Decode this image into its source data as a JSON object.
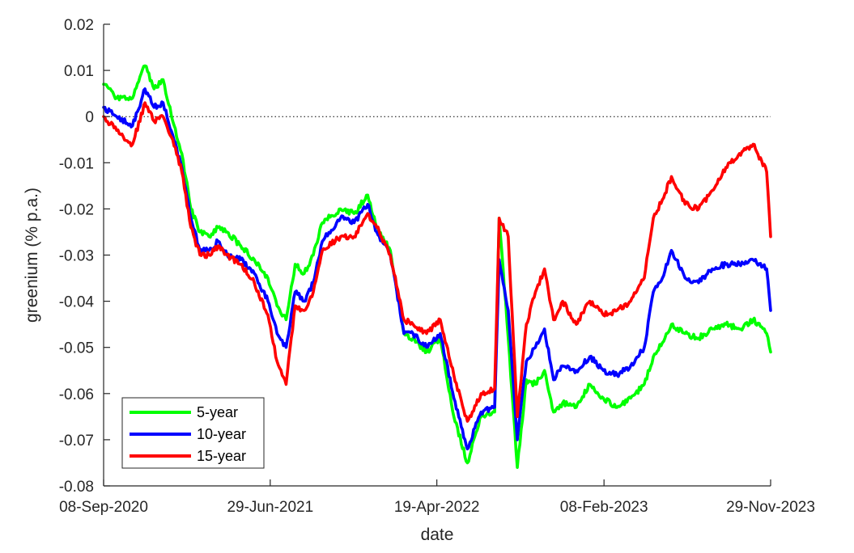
{
  "chart_data": {
    "type": "line",
    "xlabel": "date",
    "ylabel": "greenium (% p.a.)",
    "x_ticks": [
      "08-Sep-2020",
      "29-Jun-2021",
      "19-Apr-2022",
      "08-Feb-2023",
      "29-Nov-2023"
    ],
    "x_range": [
      "2020-09-08",
      "2023-11-29"
    ],
    "ylim": [
      -0.08,
      0.02
    ],
    "y_ticks": [
      0.02,
      0.01,
      0,
      -0.01,
      -0.02,
      -0.03,
      -0.04,
      -0.05,
      -0.06,
      -0.07,
      -0.08
    ],
    "y_tick_labels": [
      "0.02",
      "0.01",
      "0",
      "-0.01",
      "-0.02",
      "-0.03",
      "-0.04",
      "-0.05",
      "-0.06",
      "-0.07",
      "-0.08"
    ],
    "reference_line": {
      "y": 0,
      "style": "dotted"
    },
    "grid": false,
    "legend": {
      "position": "bottom-left"
    },
    "series": [
      {
        "name": "5-year",
        "color": "#00ff00",
        "points": [
          [
            "2020-09-08",
            0.007
          ],
          [
            "2020-10-01",
            0.004
          ],
          [
            "2020-10-29",
            0.004
          ],
          [
            "2020-11-20",
            0.011
          ],
          [
            "2020-12-06",
            0.006
          ],
          [
            "2020-12-22",
            0.008
          ],
          [
            "2021-01-08",
            -0.001
          ],
          [
            "2021-01-24",
            -0.008
          ],
          [
            "2021-02-09",
            -0.02
          ],
          [
            "2021-02-25",
            -0.025
          ],
          [
            "2021-03-13",
            -0.026
          ],
          [
            "2021-03-29",
            -0.024
          ],
          [
            "2021-04-14",
            -0.025
          ],
          [
            "2021-05-08",
            -0.028
          ],
          [
            "2021-06-01",
            -0.031
          ],
          [
            "2021-06-25",
            -0.035
          ],
          [
            "2021-07-11",
            -0.041
          ],
          [
            "2021-07-27",
            -0.044
          ],
          [
            "2021-08-12",
            -0.032
          ],
          [
            "2021-08-28",
            -0.034
          ],
          [
            "2021-09-13",
            -0.03
          ],
          [
            "2021-09-29",
            -0.023
          ],
          [
            "2021-10-31",
            -0.02
          ],
          [
            "2021-11-24",
            -0.021
          ],
          [
            "2021-12-18",
            -0.017
          ],
          [
            "2022-01-03",
            -0.024
          ],
          [
            "2022-01-27",
            -0.029
          ],
          [
            "2022-02-20",
            -0.047
          ],
          [
            "2022-03-08",
            -0.048
          ],
          [
            "2022-04-01",
            -0.051
          ],
          [
            "2022-04-25",
            -0.048
          ],
          [
            "2022-05-19",
            -0.065
          ],
          [
            "2022-06-12",
            -0.075
          ],
          [
            "2022-07-06",
            -0.065
          ],
          [
            "2022-07-30",
            -0.064
          ],
          [
            "2022-08-07",
            -0.022
          ],
          [
            "2022-08-23",
            -0.048
          ],
          [
            "2022-09-08",
            -0.076
          ],
          [
            "2022-09-24",
            -0.057
          ],
          [
            "2022-10-10",
            -0.058
          ],
          [
            "2022-10-26",
            -0.055
          ],
          [
            "2022-11-11",
            -0.064
          ],
          [
            "2022-11-27",
            -0.062
          ],
          [
            "2022-12-21",
            -0.063
          ],
          [
            "2023-01-14",
            -0.058
          ],
          [
            "2023-02-07",
            -0.061
          ],
          [
            "2023-03-03",
            -0.063
          ],
          [
            "2023-03-27",
            -0.061
          ],
          [
            "2023-04-20",
            -0.058
          ],
          [
            "2023-05-06",
            -0.052
          ],
          [
            "2023-05-22",
            -0.049
          ],
          [
            "2023-06-07",
            -0.045
          ],
          [
            "2023-07-01",
            -0.047
          ],
          [
            "2023-07-25",
            -0.048
          ],
          [
            "2023-08-18",
            -0.046
          ],
          [
            "2023-09-11",
            -0.045
          ],
          [
            "2023-10-05",
            -0.046
          ],
          [
            "2023-10-29",
            -0.044
          ],
          [
            "2023-11-22",
            -0.047
          ],
          [
            "2023-11-29",
            -0.051
          ]
        ]
      },
      {
        "name": "10-year",
        "color": "#0000ff",
        "points": [
          [
            "2020-09-08",
            0.002
          ],
          [
            "2020-10-01",
            0.0
          ],
          [
            "2020-10-29",
            -0.002
          ],
          [
            "2020-11-20",
            0.006
          ],
          [
            "2020-12-06",
            0.002
          ],
          [
            "2020-12-22",
            0.003
          ],
          [
            "2021-01-08",
            -0.004
          ],
          [
            "2021-01-24",
            -0.011
          ],
          [
            "2021-02-09",
            -0.022
          ],
          [
            "2021-02-25",
            -0.029
          ],
          [
            "2021-03-13",
            -0.029
          ],
          [
            "2021-03-29",
            -0.027
          ],
          [
            "2021-04-14",
            -0.03
          ],
          [
            "2021-05-08",
            -0.031
          ],
          [
            "2021-06-01",
            -0.034
          ],
          [
            "2021-06-25",
            -0.04
          ],
          [
            "2021-07-11",
            -0.047
          ],
          [
            "2021-07-27",
            -0.05
          ],
          [
            "2021-08-12",
            -0.038
          ],
          [
            "2021-08-28",
            -0.04
          ],
          [
            "2021-09-13",
            -0.036
          ],
          [
            "2021-09-29",
            -0.027
          ],
          [
            "2021-10-31",
            -0.022
          ],
          [
            "2021-11-24",
            -0.023
          ],
          [
            "2021-12-18",
            -0.019
          ],
          [
            "2022-01-03",
            -0.025
          ],
          [
            "2022-01-27",
            -0.03
          ],
          [
            "2022-02-20",
            -0.047
          ],
          [
            "2022-03-08",
            -0.047
          ],
          [
            "2022-04-01",
            -0.05
          ],
          [
            "2022-04-25",
            -0.047
          ],
          [
            "2022-05-19",
            -0.061
          ],
          [
            "2022-06-12",
            -0.072
          ],
          [
            "2022-07-06",
            -0.064
          ],
          [
            "2022-07-30",
            -0.063
          ],
          [
            "2022-08-07",
            -0.031
          ],
          [
            "2022-08-23",
            -0.042
          ],
          [
            "2022-09-08",
            -0.07
          ],
          [
            "2022-09-24",
            -0.053
          ],
          [
            "2022-10-10",
            -0.05
          ],
          [
            "2022-10-26",
            -0.046
          ],
          [
            "2022-11-11",
            -0.057
          ],
          [
            "2022-11-27",
            -0.054
          ],
          [
            "2022-12-21",
            -0.055
          ],
          [
            "2023-01-14",
            -0.052
          ],
          [
            "2023-02-07",
            -0.055
          ],
          [
            "2023-03-03",
            -0.056
          ],
          [
            "2023-03-27",
            -0.054
          ],
          [
            "2023-04-20",
            -0.05
          ],
          [
            "2023-05-06",
            -0.038
          ],
          [
            "2023-05-22",
            -0.035
          ],
          [
            "2023-06-07",
            -0.029
          ],
          [
            "2023-07-01",
            -0.035
          ],
          [
            "2023-07-25",
            -0.036
          ],
          [
            "2023-08-18",
            -0.033
          ],
          [
            "2023-09-11",
            -0.032
          ],
          [
            "2023-10-05",
            -0.032
          ],
          [
            "2023-10-29",
            -0.031
          ],
          [
            "2023-11-22",
            -0.033
          ],
          [
            "2023-11-29",
            -0.042
          ]
        ]
      },
      {
        "name": "15-year",
        "color": "#ff0000",
        "points": [
          [
            "2020-09-08",
            0.0
          ],
          [
            "2020-10-01",
            -0.003
          ],
          [
            "2020-10-29",
            -0.006
          ],
          [
            "2020-11-20",
            0.003
          ],
          [
            "2020-12-06",
            -0.001
          ],
          [
            "2020-12-22",
            0.0
          ],
          [
            "2021-01-08",
            -0.005
          ],
          [
            "2021-01-24",
            -0.012
          ],
          [
            "2021-02-09",
            -0.024
          ],
          [
            "2021-02-25",
            -0.03
          ],
          [
            "2021-03-13",
            -0.03
          ],
          [
            "2021-03-29",
            -0.028
          ],
          [
            "2021-04-14",
            -0.03
          ],
          [
            "2021-05-08",
            -0.032
          ],
          [
            "2021-06-01",
            -0.036
          ],
          [
            "2021-06-25",
            -0.043
          ],
          [
            "2021-07-11",
            -0.053
          ],
          [
            "2021-07-27",
            -0.058
          ],
          [
            "2021-08-12",
            -0.041
          ],
          [
            "2021-08-28",
            -0.042
          ],
          [
            "2021-09-13",
            -0.038
          ],
          [
            "2021-09-29",
            -0.029
          ],
          [
            "2021-10-31",
            -0.026
          ],
          [
            "2021-11-24",
            -0.026
          ],
          [
            "2021-12-18",
            -0.021
          ],
          [
            "2022-01-03",
            -0.024
          ],
          [
            "2022-01-27",
            -0.03
          ],
          [
            "2022-02-20",
            -0.044
          ],
          [
            "2022-03-08",
            -0.045
          ],
          [
            "2022-04-01",
            -0.047
          ],
          [
            "2022-04-25",
            -0.044
          ],
          [
            "2022-05-19",
            -0.056
          ],
          [
            "2022-06-12",
            -0.066
          ],
          [
            "2022-07-06",
            -0.06
          ],
          [
            "2022-07-30",
            -0.059
          ],
          [
            "2022-08-07",
            -0.022
          ],
          [
            "2022-08-23",
            -0.026
          ],
          [
            "2022-09-08",
            -0.065
          ],
          [
            "2022-09-24",
            -0.045
          ],
          [
            "2022-10-10",
            -0.038
          ],
          [
            "2022-10-26",
            -0.033
          ],
          [
            "2022-11-11",
            -0.044
          ],
          [
            "2022-11-27",
            -0.04
          ],
          [
            "2022-12-21",
            -0.045
          ],
          [
            "2023-01-14",
            -0.04
          ],
          [
            "2023-02-07",
            -0.043
          ],
          [
            "2023-03-03",
            -0.042
          ],
          [
            "2023-03-27",
            -0.04
          ],
          [
            "2023-04-20",
            -0.035
          ],
          [
            "2023-05-06",
            -0.022
          ],
          [
            "2023-05-22",
            -0.018
          ],
          [
            "2023-06-07",
            -0.013
          ],
          [
            "2023-07-01",
            -0.019
          ],
          [
            "2023-07-25",
            -0.02
          ],
          [
            "2023-08-18",
            -0.016
          ],
          [
            "2023-09-11",
            -0.011
          ],
          [
            "2023-10-05",
            -0.008
          ],
          [
            "2023-10-29",
            -0.006
          ],
          [
            "2023-11-22",
            -0.012
          ],
          [
            "2023-11-29",
            -0.026
          ]
        ]
      }
    ]
  }
}
